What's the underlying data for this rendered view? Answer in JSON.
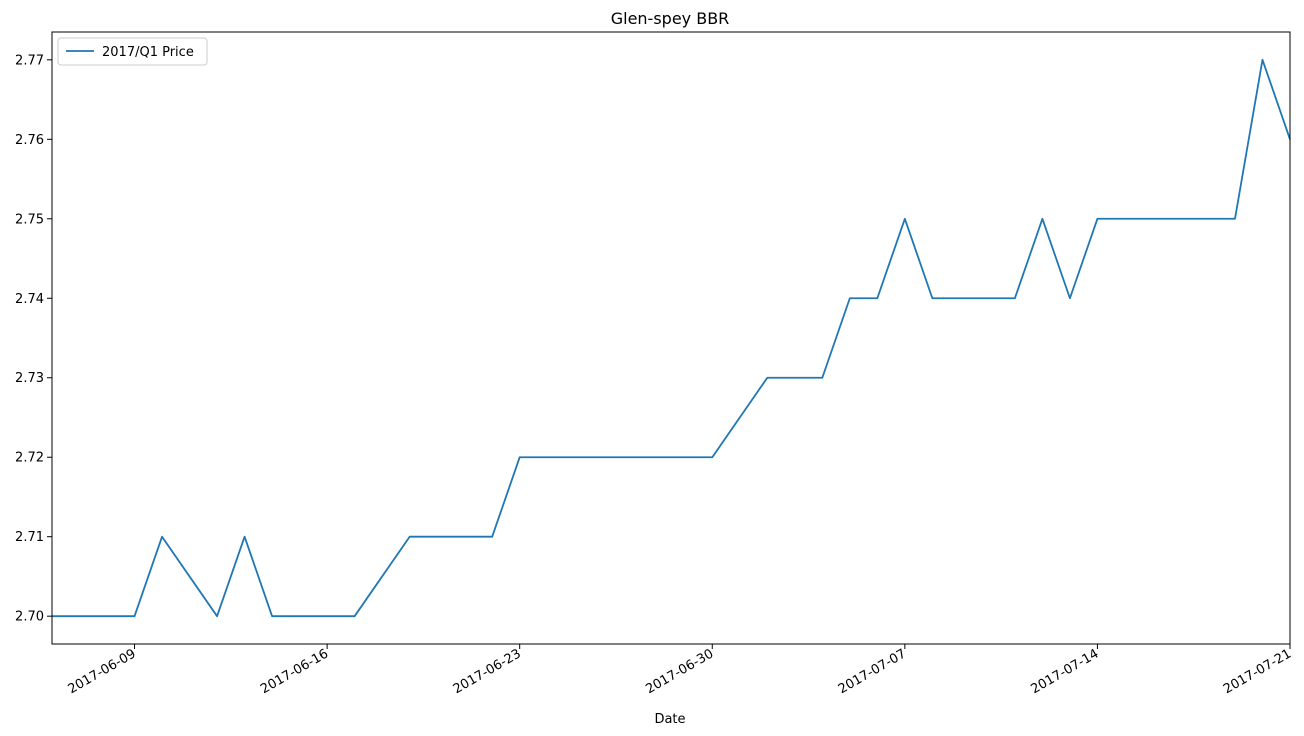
{
  "chart_data": {
    "type": "line",
    "title": "Glen-spey BBR",
    "xlabel": "Date",
    "ylabel": "",
    "x_range": [
      "2017-06-06",
      "2017-07-21"
    ],
    "ylim": [
      2.6965,
      2.7735
    ],
    "x_ticks": [
      "2017-06-09",
      "2017-06-16",
      "2017-06-23",
      "2017-06-30",
      "2017-07-07",
      "2017-07-14",
      "2017-07-21"
    ],
    "y_ticks": [
      "2.70",
      "2.71",
      "2.72",
      "2.73",
      "2.74",
      "2.75",
      "2.76",
      "2.77"
    ],
    "grid": false,
    "legend_position": "top-left",
    "colors": {
      "series": "#1f77b4"
    },
    "series": [
      {
        "name": "2017/Q1 Price",
        "x": [
          "2017-06-06",
          "2017-06-07",
          "2017-06-08",
          "2017-06-09",
          "2017-06-10",
          "2017-06-12",
          "2017-06-13",
          "2017-06-14",
          "2017-06-15",
          "2017-06-16",
          "2017-06-17",
          "2017-06-19",
          "2017-06-20",
          "2017-06-21",
          "2017-06-22",
          "2017-06-23",
          "2017-06-30",
          "2017-07-02",
          "2017-07-03",
          "2017-07-04",
          "2017-07-05",
          "2017-07-06",
          "2017-07-07",
          "2017-07-08",
          "2017-07-11",
          "2017-07-12",
          "2017-07-13",
          "2017-07-14",
          "2017-07-19",
          "2017-07-20",
          "2017-07-21"
        ],
        "values": [
          2.7,
          2.7,
          2.7,
          2.7,
          2.71,
          2.7,
          2.71,
          2.7,
          2.7,
          2.7,
          2.7,
          2.71,
          2.71,
          2.71,
          2.71,
          2.72,
          2.72,
          2.73,
          2.73,
          2.73,
          2.74,
          2.74,
          2.75,
          2.74,
          2.74,
          2.75,
          2.74,
          2.75,
          2.75,
          2.77,
          2.76
        ]
      }
    ]
  }
}
